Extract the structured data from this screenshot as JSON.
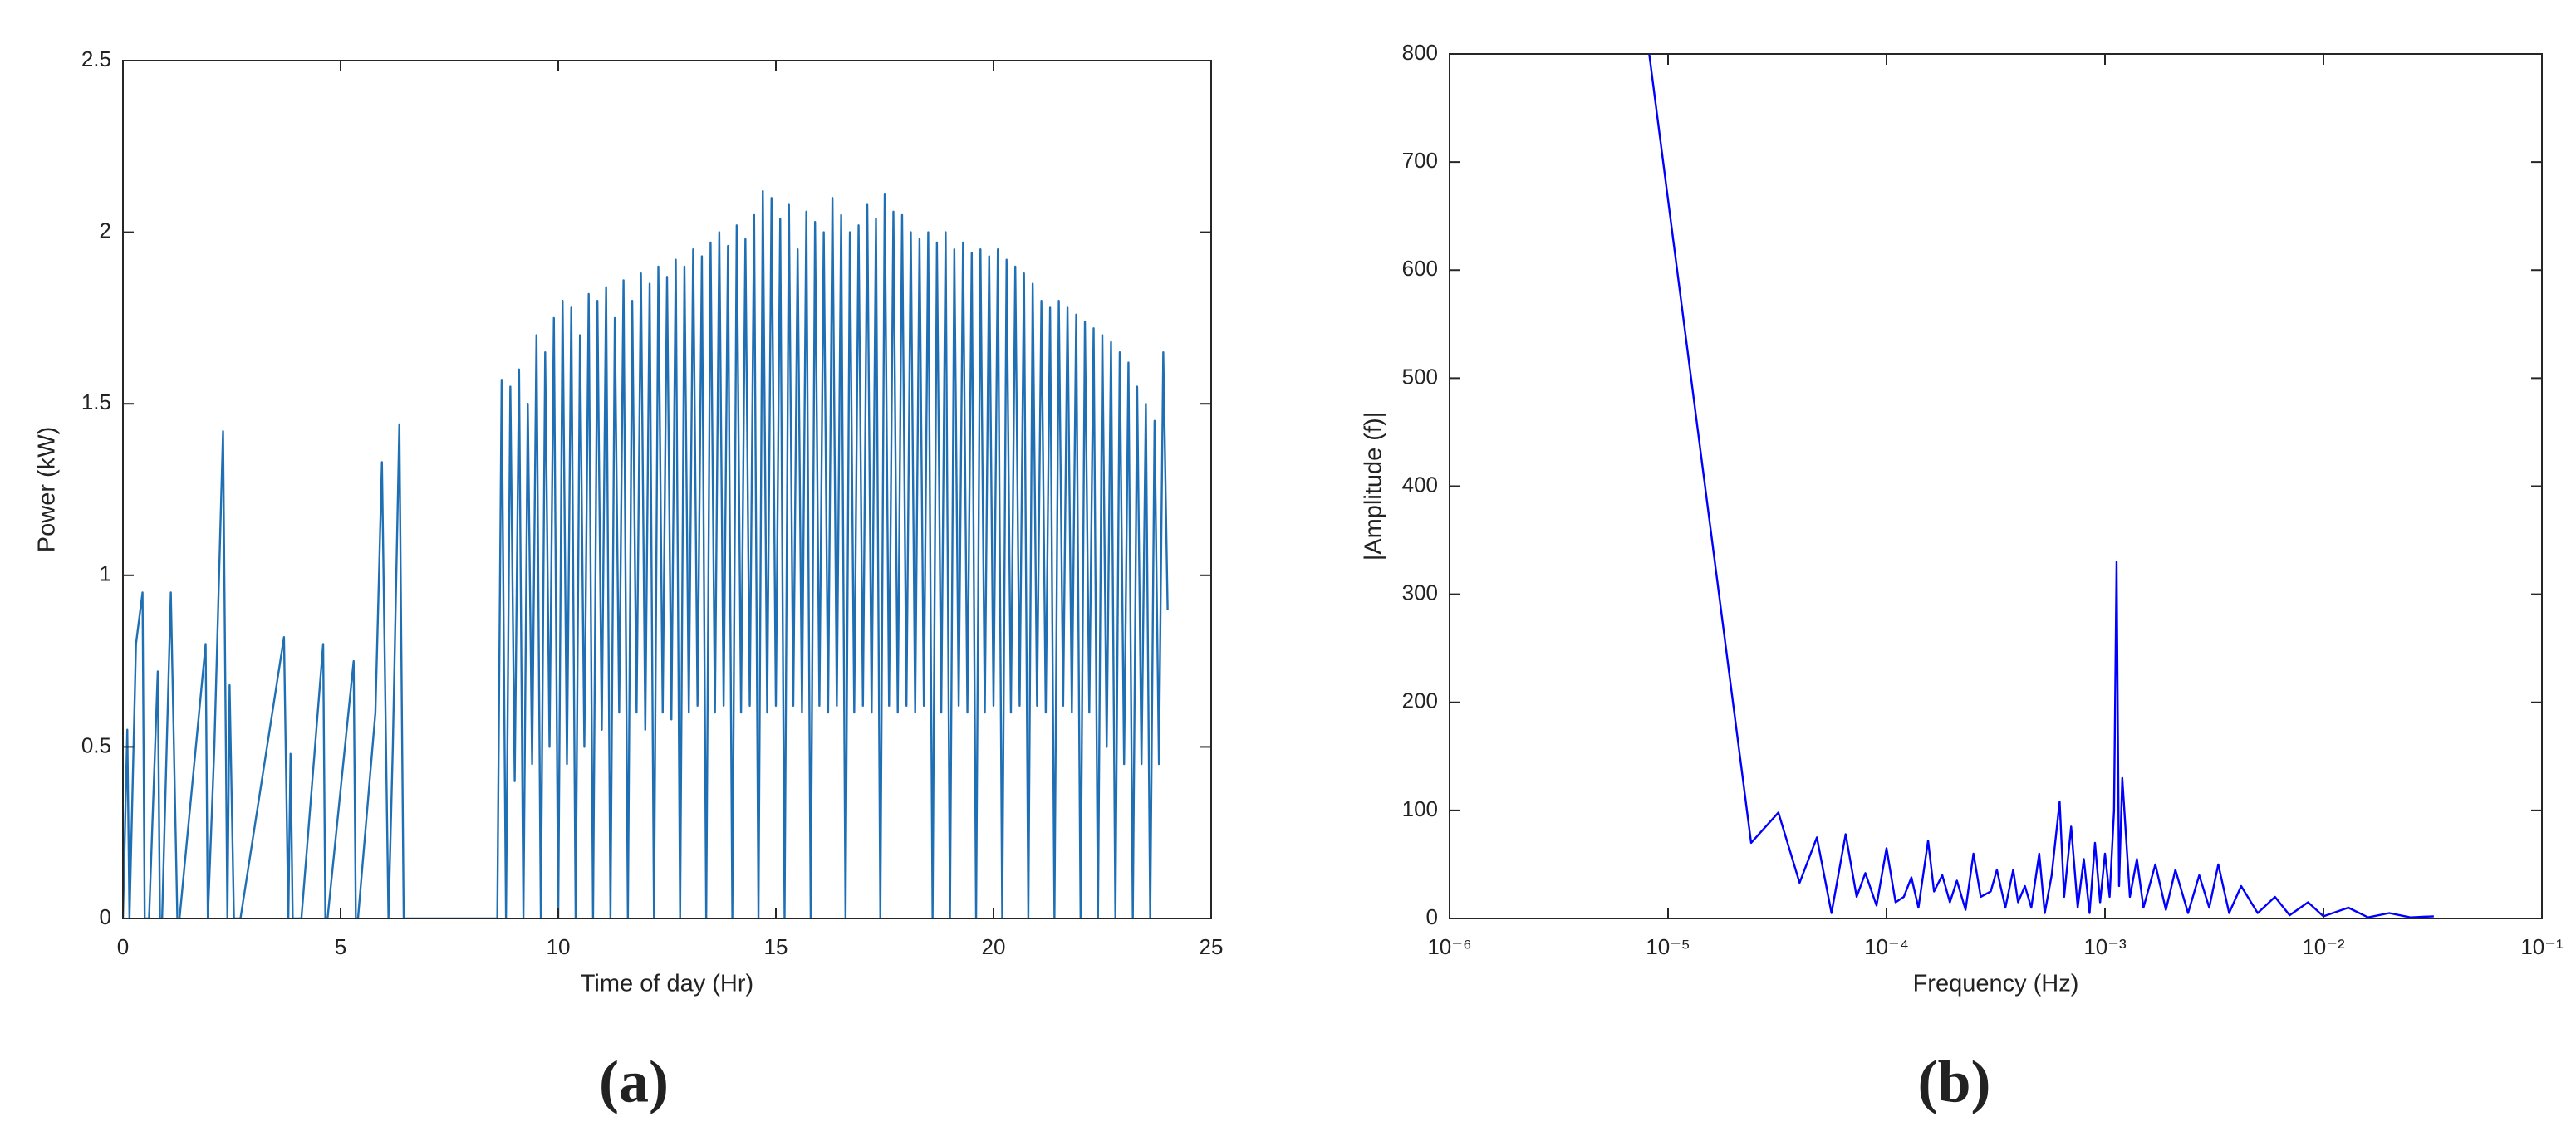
{
  "chart_data": [
    {
      "type": "line",
      "caption": "(a)",
      "xlabel": "Time of day (Hr)",
      "ylabel": "Power (kW)",
      "color": "#1f6fb4",
      "xlim": [
        0,
        25
      ],
      "xticks": [
        0,
        5,
        10,
        15,
        20,
        25
      ],
      "ylim": [
        0,
        2.5
      ],
      "yticks": [
        0,
        0.5,
        1,
        1.5,
        2,
        2.5
      ],
      "xscale": "linear",
      "x": [
        0,
        0.1,
        0.15,
        0.3,
        0.45,
        0.5,
        0.6,
        0.8,
        0.85,
        0.9,
        1.1,
        1.25,
        1.3,
        1.9,
        1.95,
        2.1,
        2.3,
        2.4,
        2.45,
        2.55,
        2.65,
        2.7,
        3.7,
        3.8,
        3.85,
        3.9,
        4.0,
        4.1,
        4.6,
        4.65,
        4.7,
        5.3,
        5.35,
        5.4,
        5.8,
        5.95,
        6.1,
        6.2,
        6.35,
        6.45,
        6.5,
        8.6,
        8.7,
        8.8,
        8.9,
        9.0,
        9.1,
        9.2,
        9.3,
        9.4,
        9.5,
        9.6,
        9.7,
        9.8,
        9.9,
        10.0,
        10.1,
        10.2,
        10.3,
        10.4,
        10.5,
        10.6,
        10.7,
        10.8,
        10.9,
        11.0,
        11.1,
        11.2,
        11.3,
        11.4,
        11.5,
        11.6,
        11.7,
        11.8,
        11.9,
        12.0,
        12.1,
        12.2,
        12.3,
        12.4,
        12.5,
        12.6,
        12.7,
        12.8,
        12.9,
        13.0,
        13.1,
        13.2,
        13.3,
        13.4,
        13.5,
        13.6,
        13.7,
        13.8,
        13.9,
        14.0,
        14.1,
        14.2,
        14.3,
        14.4,
        14.5,
        14.6,
        14.7,
        14.8,
        14.9,
        15.0,
        15.1,
        15.2,
        15.3,
        15.4,
        15.5,
        15.6,
        15.7,
        15.8,
        15.9,
        16.0,
        16.1,
        16.2,
        16.3,
        16.4,
        16.5,
        16.6,
        16.7,
        16.8,
        16.9,
        17.0,
        17.1,
        17.2,
        17.3,
        17.4,
        17.5,
        17.6,
        17.7,
        17.8,
        17.9,
        18.0,
        18.1,
        18.2,
        18.3,
        18.4,
        18.5,
        18.6,
        18.7,
        18.8,
        18.9,
        19.0,
        19.1,
        19.2,
        19.3,
        19.4,
        19.5,
        19.6,
        19.7,
        19.8,
        19.9,
        20.0,
        20.1,
        20.2,
        20.3,
        20.4,
        20.5,
        20.6,
        20.7,
        20.8,
        20.9,
        21.0,
        21.1,
        21.2,
        21.3,
        21.4,
        21.5,
        21.6,
        21.7,
        21.8,
        21.9,
        22.0,
        22.1,
        22.2,
        22.3,
        22.4,
        22.5,
        22.6,
        22.7,
        22.8,
        22.9,
        23.0,
        23.1,
        23.2,
        23.3,
        23.4,
        23.5,
        23.6,
        23.7,
        23.8,
        23.9,
        24.0
      ],
      "values": [
        0,
        0.55,
        0,
        0.8,
        0.95,
        0,
        0,
        0.72,
        0,
        0,
        0.95,
        0,
        0,
        0.8,
        0,
        0.5,
        1.42,
        0,
        0.68,
        0,
        0,
        0,
        0.82,
        0,
        0.48,
        0,
        0,
        0,
        0.8,
        0,
        0,
        0.75,
        0,
        0,
        0.6,
        1.33,
        0,
        0.5,
        1.44,
        0,
        0,
        0,
        1.57,
        0,
        1.55,
        0.4,
        1.6,
        0,
        1.5,
        0.45,
        1.7,
        0,
        1.65,
        0.5,
        1.75,
        0,
        1.8,
        0.45,
        1.78,
        0,
        1.7,
        0.5,
        1.82,
        0,
        1.8,
        0.55,
        1.84,
        0,
        1.75,
        0.6,
        1.86,
        0,
        1.8,
        0.6,
        1.88,
        0.55,
        1.85,
        0,
        1.9,
        0.6,
        1.87,
        0.58,
        1.92,
        0,
        1.9,
        0.6,
        1.95,
        0.62,
        1.93,
        0,
        1.97,
        0.6,
        2.0,
        0.62,
        1.96,
        0,
        2.02,
        0.6,
        1.98,
        0.62,
        2.05,
        0,
        2.12,
        0.6,
        2.1,
        0.62,
        2.04,
        0,
        2.08,
        0.62,
        1.95,
        0.6,
        2.06,
        0,
        2.03,
        0.62,
        2.0,
        0.6,
        2.1,
        0.62,
        2.05,
        0,
        2.0,
        0.6,
        2.02,
        0.62,
        2.08,
        0.6,
        2.04,
        0,
        2.11,
        0.62,
        2.06,
        0.6,
        2.05,
        0.62,
        2.0,
        0.6,
        1.98,
        0.62,
        2.0,
        0,
        1.97,
        0.6,
        2.0,
        0,
        1.95,
        0.62,
        1.97,
        0.6,
        1.94,
        0,
        1.95,
        0.6,
        1.93,
        0.62,
        1.95,
        0,
        1.92,
        0.6,
        1.9,
        0.62,
        1.88,
        0,
        1.85,
        0.62,
        1.8,
        0.6,
        1.78,
        0,
        1.8,
        0.62,
        1.78,
        0.6,
        1.76,
        0,
        1.74,
        0.6,
        1.72,
        0,
        1.7,
        0.5,
        1.68,
        0,
        1.65,
        0.45,
        1.62,
        0,
        1.55,
        0.45,
        1.5,
        0,
        1.45,
        0.45,
        1.65,
        0.9
      ]
    },
    {
      "type": "line",
      "caption": "(b)",
      "xlabel": "Frequency (Hz)",
      "ylabel": "|Amplitude (f)|",
      "color": "#0000ff",
      "xscale": "log",
      "xlim": [
        1e-06,
        0.1
      ],
      "xticks": [
        {
          "value": 1e-06,
          "label": "10⁻⁶"
        },
        {
          "value": 1e-05,
          "label": "10⁻⁵"
        },
        {
          "value": 0.0001,
          "label": "10⁻⁴"
        },
        {
          "value": 0.001,
          "label": "10⁻³"
        },
        {
          "value": 0.01,
          "label": "10⁻²"
        },
        {
          "value": 0.1,
          "label": "10⁻¹"
        }
      ],
      "ylim": [
        0,
        800
      ],
      "yticks": [
        0,
        100,
        200,
        300,
        400,
        500,
        600,
        700,
        800
      ],
      "x": [
        8.2e-06,
        2.4e-05,
        3.2e-05,
        4e-05,
        4.8e-05,
        5.6e-05,
        6.5e-05,
        7.3e-05,
        8e-05,
        9e-05,
        0.0001,
        0.00011,
        0.00012,
        0.00013,
        0.00014,
        0.000155,
        0.000165,
        0.00018,
        0.000195,
        0.00021,
        0.00023,
        0.00025,
        0.00027,
        0.0003,
        0.00032,
        0.00035,
        0.00038,
        0.0004,
        0.00043,
        0.00046,
        0.0005,
        0.00053,
        0.00057,
        0.00062,
        0.00065,
        0.0007,
        0.00075,
        0.0008,
        0.00085,
        0.0009,
        0.00095,
        0.001,
        0.00105,
        0.0011,
        0.00113,
        0.00116,
        0.0012,
        0.0013,
        0.0014,
        0.0015,
        0.0017,
        0.0019,
        0.0021,
        0.0024,
        0.0027,
        0.003,
        0.0033,
        0.0037,
        0.0042,
        0.005,
        0.006,
        0.007,
        0.0085,
        0.01,
        0.013,
        0.016,
        0.02,
        0.025,
        0.032
      ],
      "values": [
        800,
        70,
        98,
        33,
        75,
        5,
        78,
        20,
        42,
        12,
        65,
        15,
        20,
        38,
        10,
        72,
        25,
        40,
        15,
        35,
        8,
        60,
        20,
        25,
        45,
        10,
        45,
        15,
        30,
        10,
        60,
        5,
        40,
        108,
        20,
        85,
        10,
        55,
        5,
        70,
        15,
        60,
        20,
        100,
        330,
        30,
        130,
        20,
        55,
        10,
        50,
        8,
        45,
        5,
        40,
        10,
        50,
        5,
        30,
        5,
        20,
        3,
        15,
        2,
        10,
        1,
        5,
        1,
        2
      ]
    }
  ]
}
